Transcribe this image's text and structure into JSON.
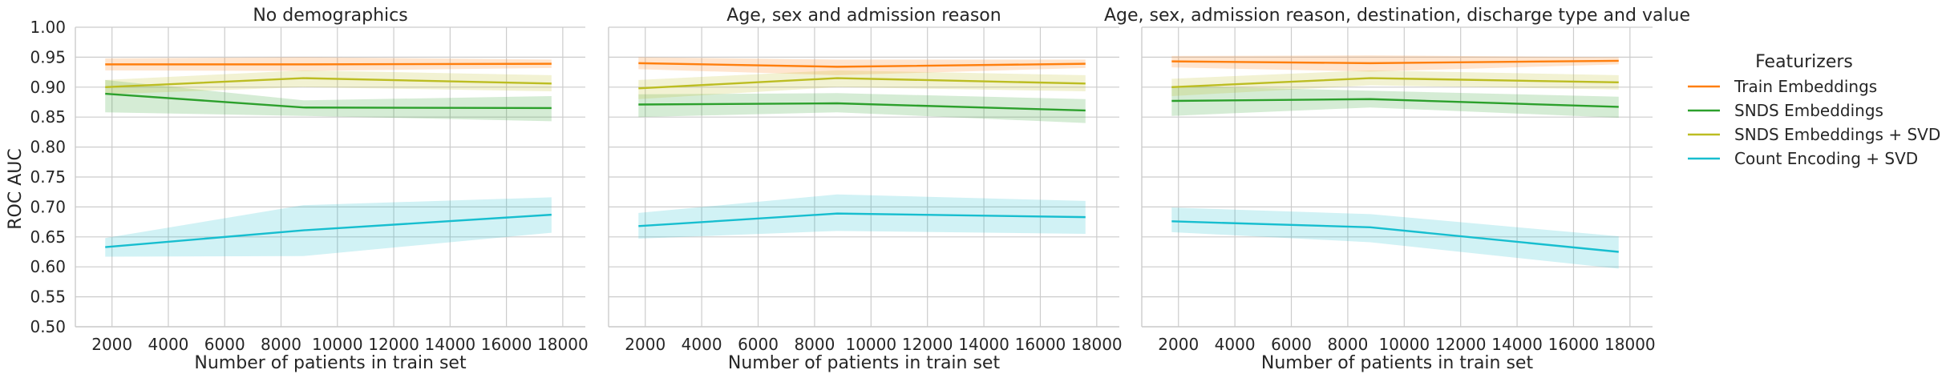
{
  "legend": {
    "title": "Featurizers",
    "entries": [
      {
        "name": "Train Embeddings",
        "color": "#ff7f0e"
      },
      {
        "name": "SNDS Embeddings",
        "color": "#2ca02c"
      },
      {
        "name": "SNDS Embeddings + SVD",
        "color": "#bcbd22"
      },
      {
        "name": "Count Encoding + SVD",
        "color": "#17becf"
      }
    ]
  },
  "chart_data": [
    {
      "type": "line",
      "title": "No demographics",
      "xlabel": "Number of patients in train set",
      "ylabel": "ROC AUC",
      "xlim": [
        700,
        18800
      ],
      "ylim": [
        0.5,
        1.0
      ],
      "xticks": [
        "2000",
        "4000",
        "6000",
        "8000",
        "10000",
        "12000",
        "14000",
        "16000",
        "18000"
      ],
      "yticks": [
        "0.50",
        "0.55",
        "0.60",
        "0.65",
        "0.70",
        "0.75",
        "0.80",
        "0.85",
        "0.90",
        "0.95",
        "1.00"
      ],
      "x": [
        1760,
        8800,
        17600
      ],
      "series": [
        {
          "name": "Train Embeddings",
          "values": [
            0.938,
            0.938,
            0.939
          ],
          "ci_low": [
            0.928,
            0.927,
            0.932
          ],
          "ci_high": [
            0.948,
            0.95,
            0.946
          ]
        },
        {
          "name": "SNDS Embeddings",
          "values": [
            0.889,
            0.866,
            0.865
          ],
          "ci_low": [
            0.858,
            0.852,
            0.843
          ],
          "ci_high": [
            0.912,
            0.878,
            0.885
          ]
        },
        {
          "name": "SNDS Embeddings + SVD",
          "values": [
            0.9,
            0.915,
            0.906
          ],
          "ci_low": [
            0.888,
            0.9,
            0.893
          ],
          "ci_high": [
            0.912,
            0.928,
            0.92
          ]
        },
        {
          "name": "Count Encoding + SVD",
          "values": [
            0.633,
            0.661,
            0.687
          ],
          "ci_low": [
            0.617,
            0.618,
            0.657
          ],
          "ci_high": [
            0.648,
            0.703,
            0.716
          ]
        }
      ]
    },
    {
      "type": "line",
      "title": "Age, sex and admission reason",
      "xlabel": "Number of patients in train set",
      "ylabel": "",
      "xlim": [
        700,
        18800
      ],
      "ylim": [
        0.5,
        1.0
      ],
      "xticks": [
        "2000",
        "4000",
        "6000",
        "8000",
        "10000",
        "12000",
        "14000",
        "16000",
        "18000"
      ],
      "yticks": [],
      "x": [
        1760,
        8800,
        17600
      ],
      "series": [
        {
          "name": "Train Embeddings",
          "values": [
            0.94,
            0.934,
            0.939
          ],
          "ci_low": [
            0.93,
            0.92,
            0.932
          ],
          "ci_high": [
            0.95,
            0.946,
            0.946
          ]
        },
        {
          "name": "SNDS Embeddings",
          "values": [
            0.871,
            0.873,
            0.861
          ],
          "ci_low": [
            0.85,
            0.858,
            0.84
          ],
          "ci_high": [
            0.888,
            0.89,
            0.88
          ]
        },
        {
          "name": "SNDS Embeddings + SVD",
          "values": [
            0.898,
            0.915,
            0.906
          ],
          "ci_low": [
            0.88,
            0.9,
            0.893
          ],
          "ci_high": [
            0.912,
            0.928,
            0.92
          ]
        },
        {
          "name": "Count Encoding + SVD",
          "values": [
            0.668,
            0.689,
            0.683
          ],
          "ci_low": [
            0.647,
            0.66,
            0.655
          ],
          "ci_high": [
            0.69,
            0.721,
            0.71
          ]
        }
      ]
    },
    {
      "type": "line",
      "title": "Age, sex, admission reason, destination, discharge type and value",
      "xlabel": "Number of patients in train set",
      "ylabel": "",
      "xlim": [
        700,
        18800
      ],
      "ylim": [
        0.5,
        1.0
      ],
      "xticks": [
        "2000",
        "4000",
        "6000",
        "8000",
        "10000",
        "12000",
        "14000",
        "16000",
        "18000"
      ],
      "yticks": [],
      "x": [
        1760,
        8800,
        17600
      ],
      "series": [
        {
          "name": "Train Embeddings",
          "values": [
            0.943,
            0.94,
            0.944
          ],
          "ci_low": [
            0.933,
            0.926,
            0.938
          ],
          "ci_high": [
            0.952,
            0.953,
            0.95
          ]
        },
        {
          "name": "SNDS Embeddings",
          "values": [
            0.877,
            0.88,
            0.867
          ],
          "ci_low": [
            0.852,
            0.866,
            0.849
          ],
          "ci_high": [
            0.902,
            0.894,
            0.884
          ]
        },
        {
          "name": "SNDS Embeddings + SVD",
          "values": [
            0.9,
            0.915,
            0.908
          ],
          "ci_low": [
            0.885,
            0.903,
            0.896
          ],
          "ci_high": [
            0.914,
            0.928,
            0.92
          ]
        },
        {
          "name": "Count Encoding + SVD",
          "values": [
            0.676,
            0.666,
            0.625
          ],
          "ci_low": [
            0.658,
            0.641,
            0.597
          ],
          "ci_high": [
            0.699,
            0.688,
            0.651
          ]
        }
      ]
    }
  ]
}
